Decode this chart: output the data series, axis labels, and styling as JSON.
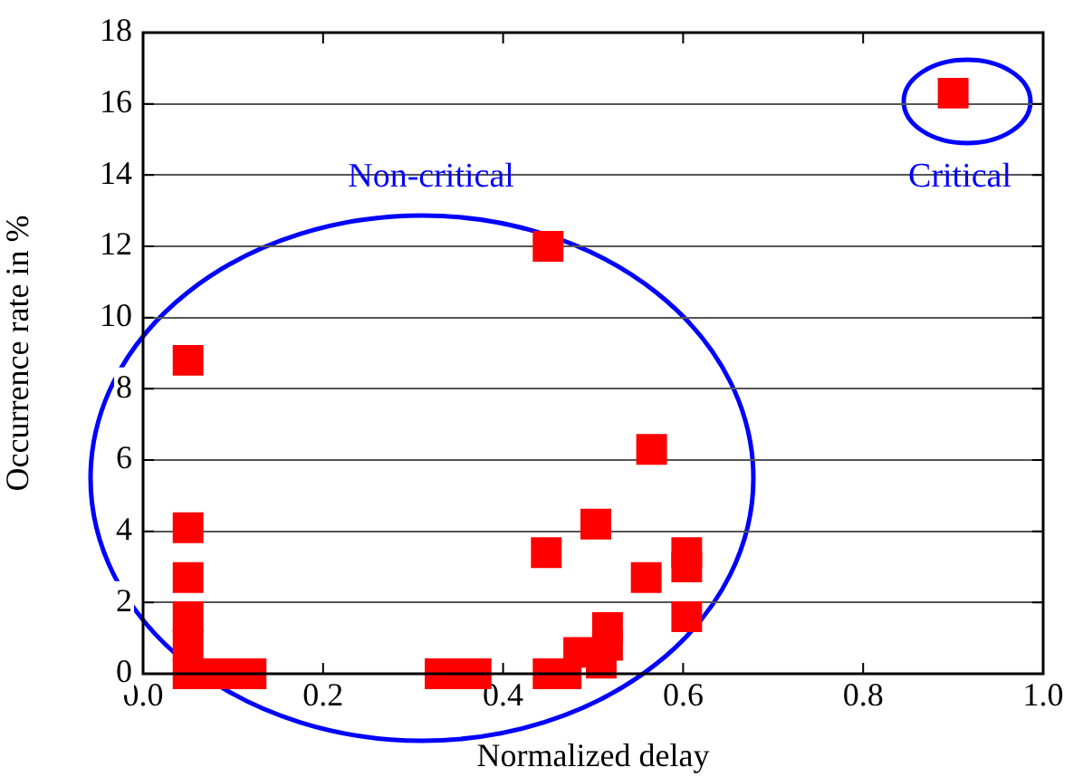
{
  "chart_data": {
    "type": "scatter",
    "xlabel": "Normalized delay",
    "ylabel": "Occurrence rate in %",
    "xlim": [
      0,
      1
    ],
    "xticks": [
      {
        "value": 0,
        "label": "0.0"
      },
      {
        "value": 0.2,
        "label": "0.2"
      },
      {
        "value": 0.4,
        "label": "0.4"
      },
      {
        "value": 0.6,
        "label": "0.6"
      },
      {
        "value": 0.8,
        "label": "0.8"
      },
      {
        "value": 1,
        "label": "1.0"
      }
    ],
    "ylim": [
      0,
      18
    ],
    "yticks": [
      0,
      2,
      4,
      6,
      8,
      10,
      12,
      14,
      16,
      18
    ],
    "grid": "y",
    "marker": "square",
    "legend": false,
    "series": [
      {
        "color": "#ff0000",
        "x": [
          0.05,
          0.05,
          0.05,
          0.05,
          0.05,
          0.05,
          0.07,
          0.1,
          0.12,
          0.33,
          0.35,
          0.37,
          0.45,
          0.565,
          0.503,
          0.448,
          0.559,
          0.604,
          0.604,
          0.604,
          0.516,
          0.516,
          0.484,
          0.509,
          0.45,
          0.47,
          0.9
        ],
        "values": [
          8.8,
          4.1,
          2.7,
          1.6,
          0.8,
          0,
          0,
          0,
          0,
          0,
          0,
          0,
          12,
          6.3,
          4.2,
          3.4,
          2.7,
          3.4,
          3.0,
          1.6,
          1.3,
          0.8,
          0.6,
          0.3,
          0,
          0,
          16.3
        ]
      }
    ],
    "annotations": [
      "Non-critical",
      "Critical"
    ]
  }
}
